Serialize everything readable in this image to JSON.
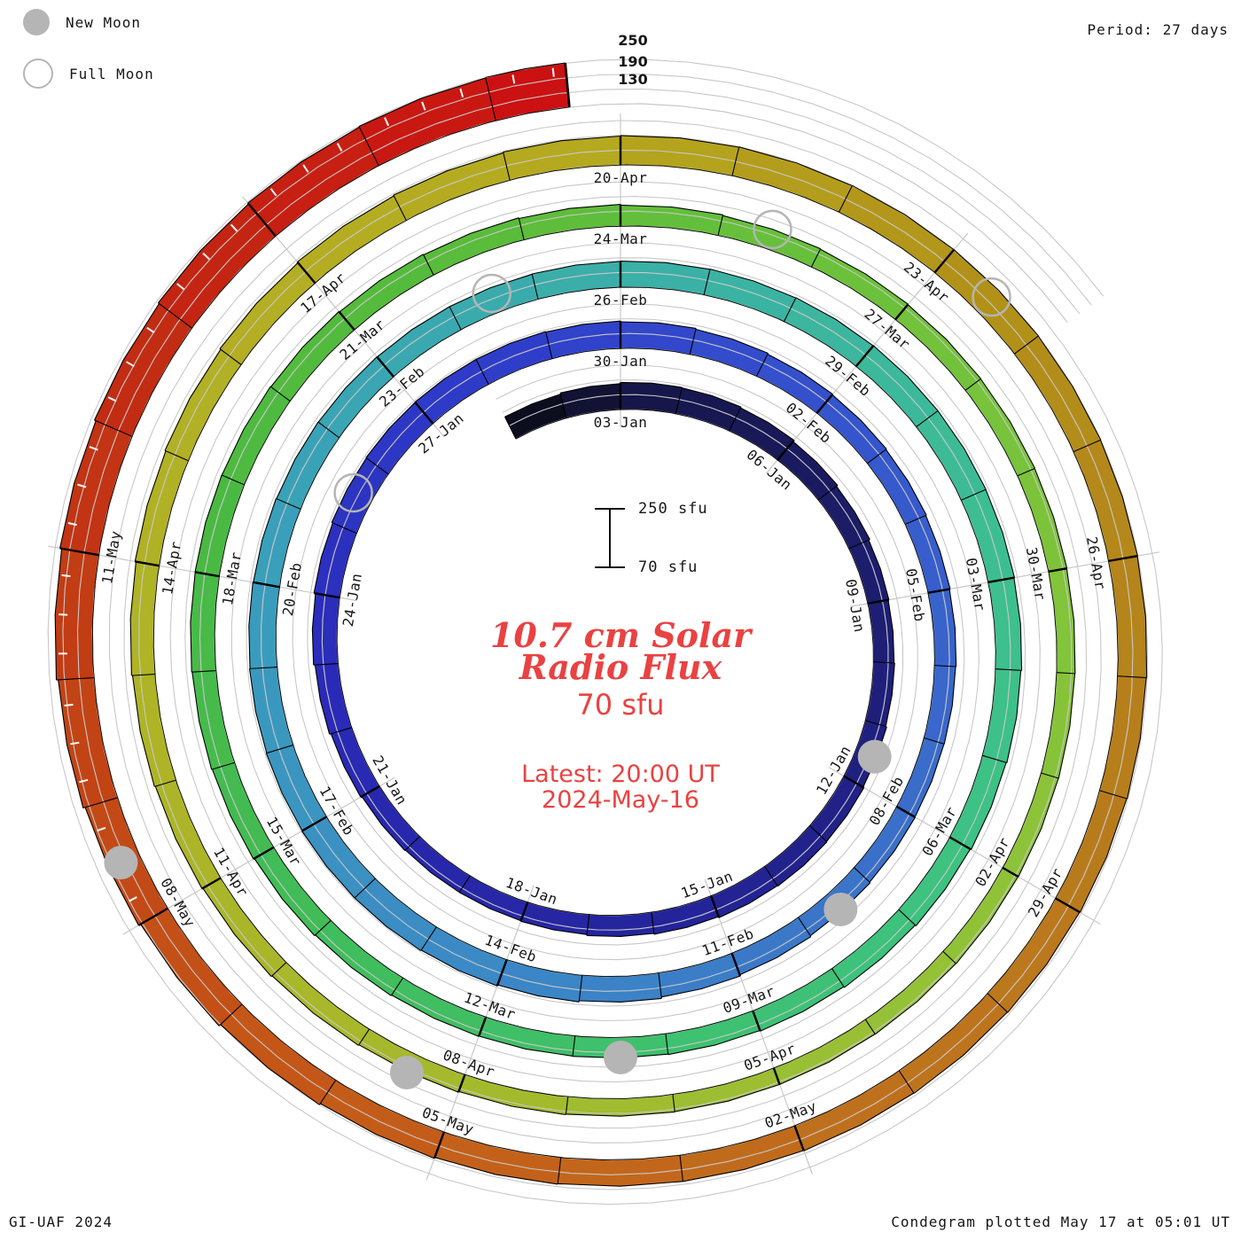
{
  "header": {
    "legend": [
      {
        "type": "new",
        "label": "New Moon"
      },
      {
        "type": "full",
        "label": "Full Moon"
      }
    ],
    "period_label": "Period: 27 days"
  },
  "radial_scale_labels": [
    "250",
    "190",
    "130"
  ],
  "center": {
    "title_line1": "10.7 cm Solar",
    "title_line2": "Radio Flux",
    "flux_label": "70 sfu",
    "latest_line1": "Latest: 20:00 UT",
    "latest_line2": "2024-May-16",
    "scalebar_top_label": "250 sfu",
    "scalebar_bottom_label": "70 sfu"
  },
  "footer": {
    "credit": "GI-UAF 2024",
    "plotted": "Condegram plotted May 17 at 05:01 UT"
  },
  "chart_data": {
    "type": "spiral-bar-condegram",
    "title": "10.7 cm Solar Radio Flux",
    "period_days": 27,
    "start_date": "2024-01-01",
    "end_date": "2024-05-16",
    "baseline_sfu": 70,
    "gridline_levels_sfu": [
      130,
      190,
      250
    ],
    "top_label_day_index": 2,
    "label_step_days": 3,
    "date_labels": [
      "03-Jan",
      "06-Jan",
      "09-Jan",
      "12-Jan",
      "15-Jan",
      "18-Jan",
      "21-Jan",
      "24-Jan",
      "27-Jan",
      "30-Jan",
      "02-Feb",
      "05-Feb",
      "08-Feb",
      "11-Feb",
      "14-Feb",
      "17-Feb",
      "20-Feb",
      "23-Feb",
      "26-Feb",
      "29-Feb",
      "03-Mar",
      "06-Mar",
      "09-Mar",
      "12-Mar",
      "15-Mar",
      "18-Mar",
      "21-Mar",
      "24-Mar",
      "27-Mar",
      "30-Mar",
      "02-Apr",
      "05-Apr",
      "08-Apr",
      "11-Apr",
      "14-Apr",
      "17-Apr",
      "20-Apr",
      "23-Apr",
      "26-Apr",
      "29-Apr",
      "02-May",
      "05-May",
      "08-May",
      "11-May"
    ],
    "values_sfu_daily": [
      170,
      175,
      180,
      178,
      174,
      168,
      162,
      157,
      154,
      156,
      160,
      164,
      166,
      164,
      160,
      156,
      152,
      150,
      150,
      153,
      158,
      164,
      170,
      176,
      180,
      182,
      183,
      183,
      181,
      178,
      174,
      170,
      167,
      164,
      161,
      158,
      156,
      155,
      156,
      159,
      163,
      168,
      174,
      179,
      183,
      185,
      185,
      184,
      182,
      180,
      178,
      176,
      175,
      174,
      174,
      175,
      176,
      177,
      178,
      179,
      179,
      178,
      176,
      173,
      170,
      166,
      162,
      158,
      155,
      153,
      152,
      153,
      156,
      160,
      164,
      167,
      169,
      170,
      169,
      167,
      164,
      161,
      158,
      155,
      152,
      150,
      148,
      147,
      146,
      145,
      144,
      143,
      142,
      141,
      140,
      140,
      141,
      143,
      146,
      149,
      153,
      157,
      161,
      165,
      169,
      173,
      177,
      181,
      184,
      187,
      189,
      190,
      191,
      191,
      190,
      189,
      188,
      186,
      184,
      182,
      180,
      178,
      177,
      177,
      179,
      183,
      189,
      197,
      206,
      215,
      223,
      230,
      236,
      241,
      245,
      248,
      250
    ],
    "moons": {
      "new": [
        {
          "date": "2024-01-11",
          "day_index": 10
        },
        {
          "date": "2024-02-09",
          "day_index": 39
        },
        {
          "date": "2024-03-10",
          "day_index": 69
        },
        {
          "date": "2024-04-08",
          "day_index": 98
        },
        {
          "date": "2024-05-08",
          "day_index": 128
        }
      ],
      "full": [
        {
          "date": "2024-01-25",
          "day_index": 24
        },
        {
          "date": "2024-02-24",
          "day_index": 54
        },
        {
          "date": "2024-03-25",
          "day_index": 84
        },
        {
          "date": "2024-04-23",
          "day_index": 113
        }
      ]
    },
    "colormap_anchors": [
      [
        0,
        "#0d0d20"
      ],
      [
        2,
        "#16164a"
      ],
      [
        7,
        "#1d1d6e"
      ],
      [
        14,
        "#24249a"
      ],
      [
        21,
        "#2a2ab8"
      ],
      [
        26,
        "#2e3ac8"
      ],
      [
        31,
        "#3450cd"
      ],
      [
        37,
        "#3a6cca"
      ],
      [
        43,
        "#3b86c6"
      ],
      [
        49,
        "#3a9cbd"
      ],
      [
        53,
        "#3aa8b0"
      ],
      [
        57,
        "#3bb3a2"
      ],
      [
        61,
        "#3dbe92"
      ],
      [
        65,
        "#3dc280"
      ],
      [
        69,
        "#3ec06c"
      ],
      [
        73,
        "#41bc56"
      ],
      [
        77,
        "#4ab942"
      ],
      [
        81,
        "#59bc3a"
      ],
      [
        85,
        "#6cc13b"
      ],
      [
        89,
        "#82c43a"
      ],
      [
        93,
        "#95c136"
      ],
      [
        97,
        "#a4ba2d"
      ],
      [
        101,
        "#acb527"
      ],
      [
        105,
        "#b2b024"
      ],
      [
        109,
        "#b5a91f"
      ],
      [
        113,
        "#b29118"
      ],
      [
        117,
        "#b67f1b"
      ],
      [
        121,
        "#bf701d"
      ],
      [
        125,
        "#c45c19"
      ],
      [
        129,
        "#c24415"
      ],
      [
        132,
        "#c22c13"
      ],
      [
        136,
        "#cb1111"
      ]
    ],
    "colors": {
      "grid": "#c8c8c8",
      "tick": "#000000",
      "moon_gray": "#b5b5b5",
      "accent_red": "#e94242",
      "label_text": "#161616"
    },
    "legend_position": "top-left",
    "grid_on": true
  }
}
